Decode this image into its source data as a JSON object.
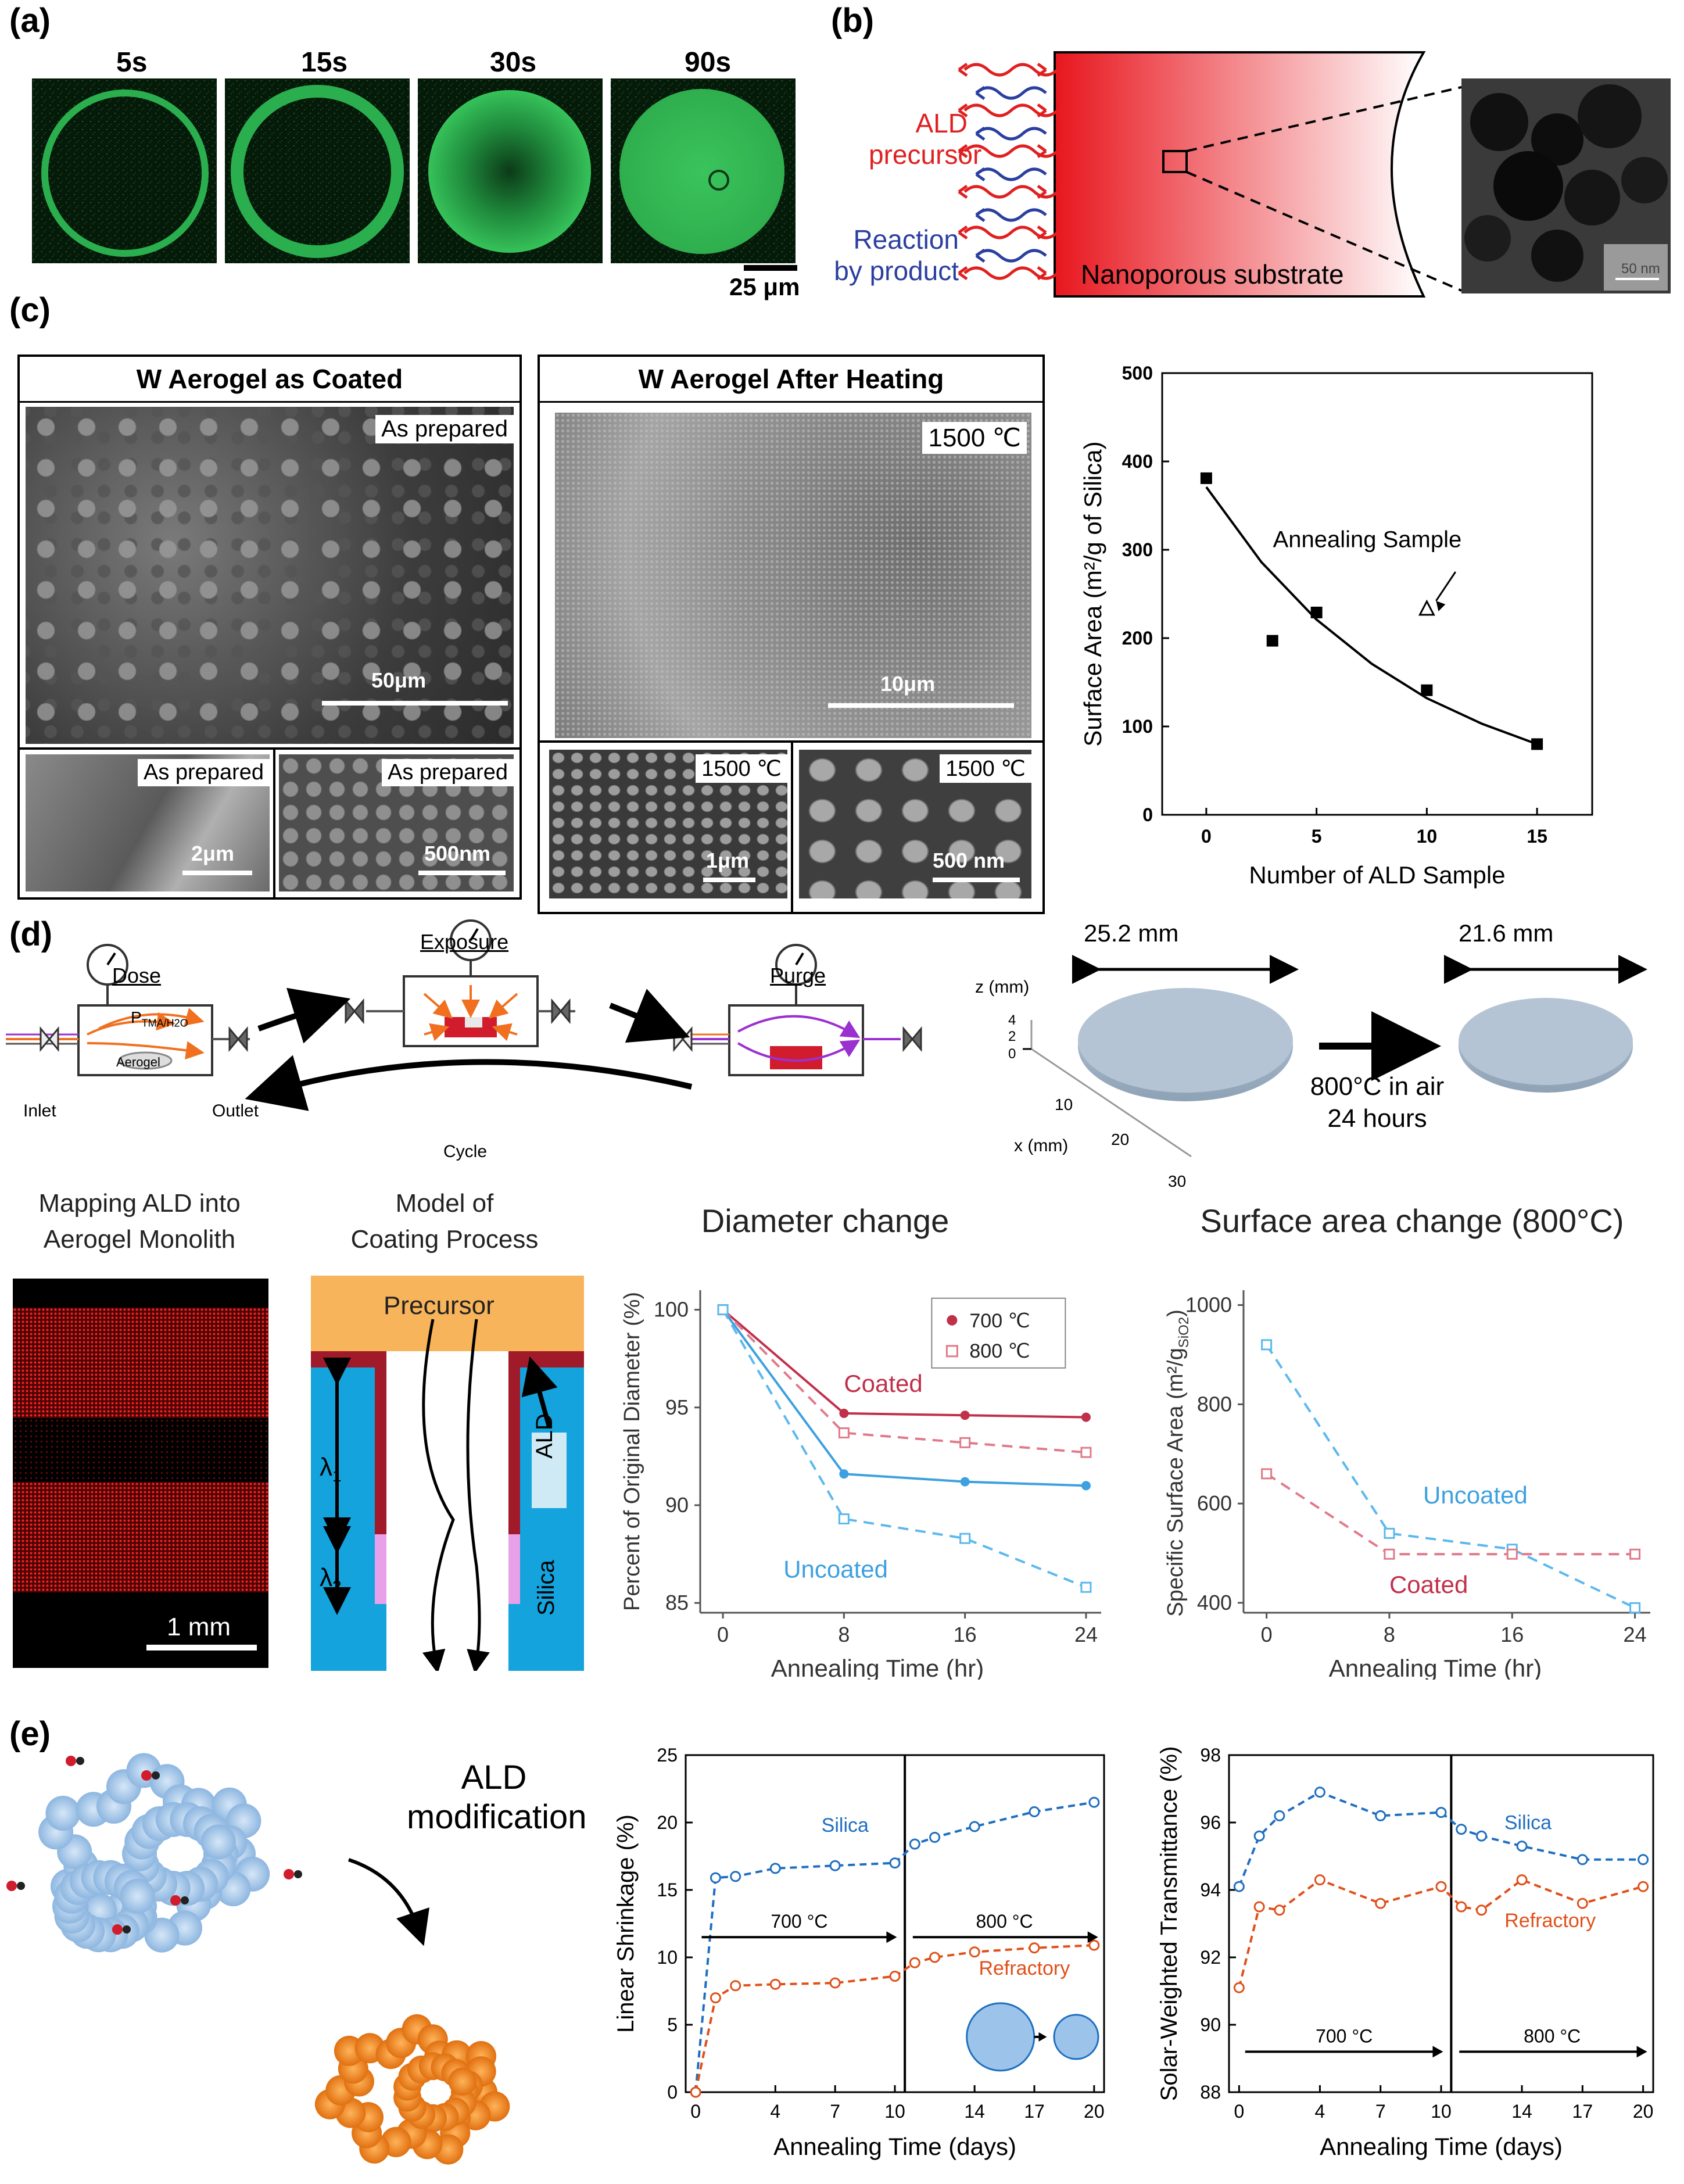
{
  "panel_labels": [
    "(a)",
    "(b)",
    "(c)",
    "(d)",
    "(e)"
  ],
  "panel_a": {
    "time_labels": [
      "5s",
      "15s",
      "30s",
      "90s"
    ],
    "scale_bar": "25 μm",
    "color": "#22c55e"
  },
  "panel_b": {
    "precursor_label": "ALD\nprecursor",
    "byproduct_label": "Reaction\nby product",
    "substrate_label": "Nanoporous substrate",
    "tem_scale": "50 nm",
    "precursor_color": "#e02020",
    "byproduct_color": "#2a3fa0"
  },
  "panel_c": {
    "box1": {
      "title": "W Aerogel as Coated",
      "main_label": "As prepared",
      "main_scale": "50μm",
      "sub1_label": "As prepared",
      "sub1_scale": "2μm",
      "sub2_label": "As prepared",
      "sub2_scale": "500nm"
    },
    "box2": {
      "title": "W Aerogel After Heating",
      "main_label": "1500 ℃",
      "main_scale": "10μm",
      "sub1_label": "1500 ℃",
      "sub1_scale": "1μm",
      "sub2_label": "1500 ℃",
      "sub2_scale": "500 nm"
    }
  },
  "panel_d": {
    "dose": "Dose",
    "exposure": "Exposure",
    "purge": "Purge",
    "pressure_label": "P",
    "pressure_sub": "TMA/H2O",
    "inlet": "Inlet",
    "outlet": "Outlet",
    "aerogel": "Aerogel",
    "cycle": "Cycle",
    "width_before": "25.2 mm",
    "width_after": "21.6 mm",
    "z_axis": "z (mm)",
    "z_ticks": [
      "4",
      "2",
      "0"
    ],
    "x_axis": "x (mm)",
    "x_ticks": [
      "10",
      "20",
      "30"
    ],
    "anneal_label_1": "800°C in air",
    "anneal_label_2": "24 hours",
    "mapping_title_1": "Mapping ALD into",
    "mapping_title_2": "Aerogel Monolith",
    "mapping_scale": "1 mm",
    "model_title_1": "Model of",
    "model_title_2": "Coating Process",
    "precursor": "Precursor",
    "lambda1": "λ",
    "lambda1_sub": "1",
    "lambda2": "λ",
    "lambda2_sub": "2",
    "ald": "ALD",
    "silica": "Silica"
  },
  "chart_data": [
    {
      "id": "c_surface_area",
      "type": "scatter",
      "xlabel": "Number of ALD Sample",
      "ylabel": "Surface Area (m²/g of Silica)",
      "xlim": [
        -2,
        17.5
      ],
      "ylim": [
        0,
        500
      ],
      "xticks": [
        0,
        5,
        10,
        15
      ],
      "yticks": [
        0,
        100,
        200,
        300,
        400,
        500
      ],
      "series": [
        {
          "marker": "filled-square",
          "x": [
            0,
            3,
            5,
            10,
            15
          ],
          "y": [
            381,
            197,
            229,
            141,
            80
          ]
        },
        {
          "marker": "open-triangle",
          "x": [
            10
          ],
          "y": [
            233
          ]
        }
      ],
      "fit_curve": {
        "x": [
          0,
          2.5,
          5,
          7.5,
          10,
          12.5,
          15
        ],
        "y": [
          371,
          286,
          221,
          171,
          132,
          103,
          80
        ]
      },
      "annotation": "Annealing Sample",
      "grid": false
    },
    {
      "id": "d_diameter",
      "type": "line",
      "title": "Diameter change",
      "xlabel": "Annealing Time (hr)",
      "ylabel": "Percent of Original Diameter (%)",
      "x": [
        0,
        8,
        16,
        24
      ],
      "xticks": [
        0,
        8,
        16,
        24
      ],
      "ylim": [
        85,
        100
      ],
      "yticks": [
        85,
        90,
        95,
        100
      ],
      "legend": [
        "700 ℃",
        "800 ℃"
      ],
      "legend_position": "top-right",
      "series": [
        {
          "group": "Coated",
          "temp": "700",
          "style": "solid",
          "color": "#c0304a",
          "values": [
            100,
            94.7,
            94.6,
            94.5
          ]
        },
        {
          "group": "Coated",
          "temp": "800",
          "style": "dashed",
          "color": "#e07a8a",
          "values": [
            100,
            93.7,
            93.2,
            92.7
          ]
        },
        {
          "group": "Uncoated",
          "temp": "700",
          "style": "solid",
          "color": "#3da0e0",
          "values": [
            100,
            91.6,
            91.2,
            91.0
          ]
        },
        {
          "group": "Uncoated",
          "temp": "800",
          "style": "dashed",
          "color": "#5cb8ee",
          "values": [
            100,
            89.3,
            88.3,
            85.8
          ]
        }
      ],
      "annotations": [
        "Coated",
        "Uncoated"
      ]
    },
    {
      "id": "d_surface",
      "type": "line",
      "title": "Surface area change (800°C)",
      "xlabel": "Annealing Time (hr)",
      "ylabel": "Specific Surface Area (m²/g",
      "ylabel_sub": "SiO2",
      "ylabel_end": ")",
      "x": [
        0,
        8,
        16,
        24
      ],
      "xticks": [
        0,
        8,
        16,
        24
      ],
      "ylim": [
        380,
        1000
      ],
      "yticks": [
        400,
        600,
        800,
        1000
      ],
      "series": [
        {
          "name": "Uncoated",
          "style": "dashed",
          "color": "#5cb8ee",
          "values": [
            920,
            540,
            508,
            390
          ]
        },
        {
          "name": "Coated",
          "style": "dashed",
          "color": "#e07a8a",
          "values": [
            660,
            498,
            498,
            498
          ]
        }
      ]
    },
    {
      "id": "e_shrinkage",
      "type": "line",
      "xlabel": "Annealing Time (days)",
      "ylabel": "Linear Shrinkage (%)",
      "xlim": [
        -0.5,
        20.5
      ],
      "ylim": [
        0,
        25
      ],
      "xticks": [
        0,
        4,
        7,
        10,
        14,
        17,
        20
      ],
      "yticks": [
        0,
        5,
        10,
        15,
        20,
        25
      ],
      "divider_x": 10.5,
      "segments": [
        "700 °C",
        "800 °C"
      ],
      "series": [
        {
          "name": "Silica",
          "style": "dashed",
          "color": "#1f6fc0",
          "x": [
            0,
            1,
            2,
            4,
            7,
            10,
            11,
            12,
            14,
            17,
            20
          ],
          "values": [
            0,
            15.9,
            16.0,
            16.6,
            16.8,
            17.0,
            18.4,
            18.9,
            19.7,
            20.8,
            21.5
          ]
        },
        {
          "name": "Refractory",
          "style": "dashed",
          "color": "#e0501a",
          "x": [
            0,
            1,
            2,
            4,
            7,
            10,
            11,
            12,
            14,
            17,
            20
          ],
          "values": [
            0,
            7.0,
            7.9,
            8.0,
            8.1,
            8.6,
            9.6,
            10.0,
            10.4,
            10.7,
            10.9
          ]
        }
      ]
    },
    {
      "id": "e_transmittance",
      "type": "line",
      "xlabel": "Annealing Time (days)",
      "ylabel": "Solar-Weighted Transmittance (%)",
      "xlim": [
        -0.5,
        20.5
      ],
      "ylim": [
        88,
        98
      ],
      "xticks": [
        0,
        4,
        7,
        10,
        14,
        17,
        20
      ],
      "yticks": [
        88,
        90,
        92,
        94,
        96,
        98
      ],
      "divider_x": 10.5,
      "segments": [
        "700 °C",
        "800 °C"
      ],
      "series": [
        {
          "name": "Silica",
          "style": "dashed",
          "color": "#1f6fc0",
          "x": [
            0,
            1,
            2,
            4,
            7,
            10,
            11,
            12,
            14,
            17,
            20
          ],
          "values": [
            94.1,
            95.6,
            96.2,
            96.9,
            96.2,
            96.3,
            95.8,
            95.6,
            95.3,
            94.9,
            94.9
          ]
        },
        {
          "name": "Refractory",
          "style": "dashed",
          "color": "#e0501a",
          "x": [
            0,
            1,
            2,
            4,
            7,
            10,
            11,
            12,
            14,
            17,
            20
          ],
          "values": [
            91.1,
            93.5,
            93.4,
            94.3,
            93.6,
            94.1,
            93.5,
            93.4,
            94.3,
            93.6,
            94.1
          ]
        }
      ]
    }
  ],
  "panel_e": {
    "ald_modification_1": "ALD",
    "ald_modification_2": "modification",
    "silica_color": "#9cc4ea",
    "refractory_color": "#f28a1e"
  }
}
